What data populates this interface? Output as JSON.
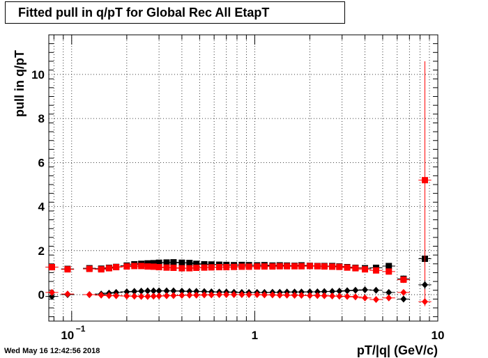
{
  "chart_data": {
    "type": "scatter",
    "title": "Fitted pull in q/pT for Global Rec All EtapT",
    "xlabel": "pT/|q| (GeV/c)",
    "ylabel": "pull in q/pT",
    "xscale": "log",
    "xlim": [
      0.075,
      10
    ],
    "ylim": [
      -1.2,
      11.8
    ],
    "grid": true,
    "x_tick_labels": [
      {
        "x": 0.1,
        "label": "10",
        "exp": "−1"
      },
      {
        "x": 1,
        "label": "1",
        "exp": ""
      },
      {
        "x": 10,
        "label": "10",
        "exp": ""
      }
    ],
    "y_tick_labels": [
      "0",
      "2",
      "4",
      "6",
      "8",
      "10"
    ],
    "series": [
      {
        "marker": "square",
        "color": "#000000",
        "x": [
          0.078,
          0.095,
          0.125,
          0.145,
          0.16,
          0.175,
          0.2,
          0.22,
          0.24,
          0.26,
          0.28,
          0.3,
          0.33,
          0.36,
          0.4,
          0.44,
          0.48,
          0.53,
          0.58,
          0.64,
          0.7,
          0.77,
          0.85,
          0.93,
          1.03,
          1.13,
          1.25,
          1.37,
          1.5,
          1.65,
          1.8,
          2.0,
          2.2,
          2.4,
          2.65,
          2.9,
          3.2,
          3.55,
          4.0,
          4.6,
          5.4,
          6.5,
          8.5
        ],
        "y": [
          1.25,
          1.17,
          1.2,
          1.18,
          1.22,
          1.26,
          1.32,
          1.38,
          1.4,
          1.42,
          1.43,
          1.45,
          1.46,
          1.47,
          1.45,
          1.44,
          1.4,
          1.38,
          1.37,
          1.36,
          1.35,
          1.34,
          1.35,
          1.34,
          1.33,
          1.34,
          1.32,
          1.33,
          1.32,
          1.31,
          1.33,
          1.31,
          1.3,
          1.3,
          1.3,
          1.28,
          1.25,
          1.22,
          1.2,
          1.22,
          1.3,
          0.72,
          1.63
        ],
        "yerr": [
          0.06,
          0.05,
          0.05,
          0.05,
          0.05,
          0.05,
          0.05,
          0.05,
          0.05,
          0.05,
          0.05,
          0.05,
          0.05,
          0.05,
          0.05,
          0.05,
          0.05,
          0.05,
          0.05,
          0.05,
          0.05,
          0.05,
          0.05,
          0.05,
          0.05,
          0.05,
          0.05,
          0.05,
          0.05,
          0.05,
          0.05,
          0.05,
          0.05,
          0.05,
          0.05,
          0.05,
          0.06,
          0.06,
          0.07,
          0.08,
          0.1,
          0.15,
          0.3
        ]
      },
      {
        "marker": "square",
        "color": "#ff0000",
        "x": [
          0.078,
          0.095,
          0.125,
          0.145,
          0.16,
          0.175,
          0.2,
          0.22,
          0.24,
          0.26,
          0.28,
          0.3,
          0.33,
          0.36,
          0.4,
          0.44,
          0.48,
          0.53,
          0.58,
          0.64,
          0.7,
          0.77,
          0.85,
          0.93,
          1.03,
          1.13,
          1.25,
          1.37,
          1.5,
          1.65,
          1.8,
          2.0,
          2.2,
          2.4,
          2.65,
          2.9,
          3.2,
          3.55,
          4.0,
          4.6,
          5.4,
          6.5,
          8.5
        ],
        "y": [
          1.25,
          1.15,
          1.17,
          1.15,
          1.2,
          1.25,
          1.28,
          1.3,
          1.3,
          1.28,
          1.27,
          1.25,
          1.23,
          1.22,
          1.2,
          1.2,
          1.22,
          1.23,
          1.24,
          1.25,
          1.25,
          1.26,
          1.27,
          1.27,
          1.28,
          1.28,
          1.28,
          1.29,
          1.29,
          1.29,
          1.29,
          1.3,
          1.29,
          1.28,
          1.27,
          1.26,
          1.23,
          1.2,
          1.15,
          1.1,
          1.05,
          0.68,
          5.2
        ],
        "yerr": [
          0.06,
          0.05,
          0.05,
          0.05,
          0.05,
          0.05,
          0.05,
          0.05,
          0.05,
          0.05,
          0.05,
          0.05,
          0.05,
          0.05,
          0.05,
          0.05,
          0.05,
          0.05,
          0.05,
          0.05,
          0.05,
          0.05,
          0.05,
          0.05,
          0.05,
          0.05,
          0.05,
          0.05,
          0.05,
          0.05,
          0.05,
          0.05,
          0.05,
          0.05,
          0.05,
          0.05,
          0.06,
          0.06,
          0.07,
          0.08,
          0.1,
          0.15,
          5.4
        ]
      },
      {
        "marker": "diamond",
        "color": "#000000",
        "x": [
          0.078,
          0.095,
          0.125,
          0.145,
          0.16,
          0.175,
          0.2,
          0.22,
          0.24,
          0.26,
          0.28,
          0.3,
          0.33,
          0.36,
          0.4,
          0.44,
          0.48,
          0.53,
          0.58,
          0.64,
          0.7,
          0.77,
          0.85,
          0.93,
          1.03,
          1.13,
          1.25,
          1.37,
          1.5,
          1.65,
          1.8,
          2.0,
          2.2,
          2.4,
          2.65,
          2.9,
          3.2,
          3.55,
          4.0,
          4.6,
          5.4,
          6.5,
          8.5
        ],
        "y": [
          -0.08,
          0.0,
          0.0,
          0.03,
          0.07,
          0.1,
          0.13,
          0.15,
          0.16,
          0.17,
          0.17,
          0.17,
          0.17,
          0.17,
          0.16,
          0.15,
          0.15,
          0.14,
          0.13,
          0.12,
          0.12,
          0.11,
          0.1,
          0.1,
          0.1,
          0.1,
          0.11,
          0.11,
          0.12,
          0.12,
          0.12,
          0.13,
          0.13,
          0.14,
          0.15,
          0.16,
          0.18,
          0.2,
          0.22,
          0.2,
          0.1,
          -0.2,
          0.45
        ],
        "yerr": [
          0.04,
          0.04,
          0.04,
          0.04,
          0.04,
          0.04,
          0.04,
          0.04,
          0.04,
          0.04,
          0.04,
          0.04,
          0.04,
          0.04,
          0.04,
          0.04,
          0.04,
          0.04,
          0.04,
          0.04,
          0.04,
          0.04,
          0.04,
          0.04,
          0.04,
          0.04,
          0.04,
          0.04,
          0.04,
          0.04,
          0.04,
          0.04,
          0.04,
          0.04,
          0.04,
          0.04,
          0.05,
          0.05,
          0.06,
          0.07,
          0.08,
          0.1,
          0.2
        ]
      },
      {
        "marker": "diamond",
        "color": "#ff0000",
        "x": [
          0.078,
          0.095,
          0.125,
          0.145,
          0.16,
          0.175,
          0.2,
          0.22,
          0.24,
          0.26,
          0.28,
          0.3,
          0.33,
          0.36,
          0.4,
          0.44,
          0.48,
          0.53,
          0.58,
          0.64,
          0.7,
          0.77,
          0.85,
          0.93,
          1.03,
          1.13,
          1.25,
          1.37,
          1.5,
          1.65,
          1.8,
          2.0,
          2.2,
          2.4,
          2.65,
          2.9,
          3.2,
          3.55,
          4.0,
          4.6,
          5.4,
          6.5,
          8.5
        ],
        "y": [
          0.1,
          0.03,
          0.0,
          -0.02,
          -0.04,
          -0.05,
          -0.06,
          -0.07,
          -0.08,
          -0.08,
          -0.07,
          -0.06,
          -0.05,
          -0.04,
          -0.03,
          -0.02,
          -0.02,
          -0.01,
          -0.01,
          0.0,
          0.0,
          0.0,
          0.0,
          0.0,
          0.0,
          -0.01,
          -0.01,
          -0.02,
          -0.02,
          -0.03,
          -0.03,
          -0.04,
          -0.04,
          -0.05,
          -0.06,
          -0.07,
          -0.08,
          -0.1,
          -0.15,
          -0.22,
          -0.15,
          0.1,
          -0.32
        ],
        "yerr": [
          0.04,
          0.04,
          0.04,
          0.04,
          0.04,
          0.04,
          0.04,
          0.04,
          0.04,
          0.04,
          0.04,
          0.04,
          0.04,
          0.04,
          0.04,
          0.04,
          0.04,
          0.04,
          0.04,
          0.04,
          0.04,
          0.04,
          0.04,
          0.04,
          0.04,
          0.04,
          0.04,
          0.04,
          0.04,
          0.04,
          0.04,
          0.04,
          0.04,
          0.04,
          0.04,
          0.04,
          0.05,
          0.05,
          0.06,
          0.07,
          0.08,
          0.1,
          0.2
        ]
      }
    ]
  },
  "footer": {
    "timestamp": "Wed May 16 12:42:56 2018"
  }
}
